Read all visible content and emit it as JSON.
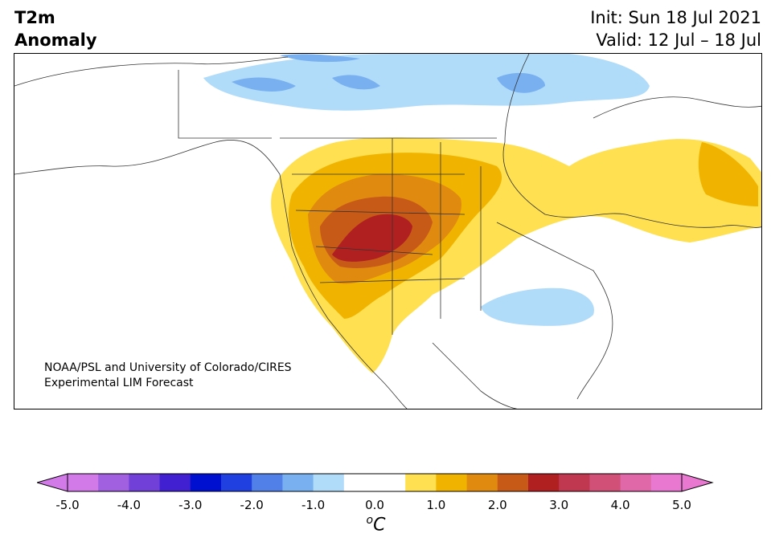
{
  "title": {
    "line1": "T2m",
    "line2": "Anomaly"
  },
  "dates": {
    "init": "Init: Sun 18 Jul 2021",
    "valid": "Valid: 12 Jul – 18 Jul"
  },
  "credit": {
    "line1": "NOAA/PSL and University of Colorado/CIRES",
    "line2": "Experimental LIM Forecast"
  },
  "colorbar": {
    "ticks": [
      "-5.0",
      "-4.0",
      "-3.0",
      "-2.0",
      "-1.0",
      "0.0",
      "1.0",
      "2.0",
      "3.0",
      "4.0",
      "5.0"
    ],
    "unit_sup": "o",
    "unit_main": "C",
    "min": -5.0,
    "max": 5.0,
    "step": 0.5,
    "colors": [
      "#d17ae8",
      "#a060e0",
      "#7040d8",
      "#4020d0",
      "#0010d0",
      "#2040e0",
      "#5080e8",
      "#78b0f0",
      "#b0dcfa",
      "#ffffff",
      "#ffffff",
      "#ffe050",
      "#f0b400",
      "#e08a10",
      "#c85a18",
      "#b02020",
      "#c03850",
      "#d05078",
      "#e068a8",
      "#e878d0"
    ],
    "under_color": "#d17ae8",
    "over_color": "#e878d0"
  },
  "map": {
    "region": "North America",
    "anomaly_colors": {
      "cool_light": "#b0dcfa",
      "cool_medium": "#78b0f0",
      "warm_0_5": "#ffe050",
      "warm_1_0": "#f0b400",
      "warm_1_5": "#e08a10",
      "warm_2_0": "#c85a18",
      "warm_2_5": "#b02020"
    }
  }
}
